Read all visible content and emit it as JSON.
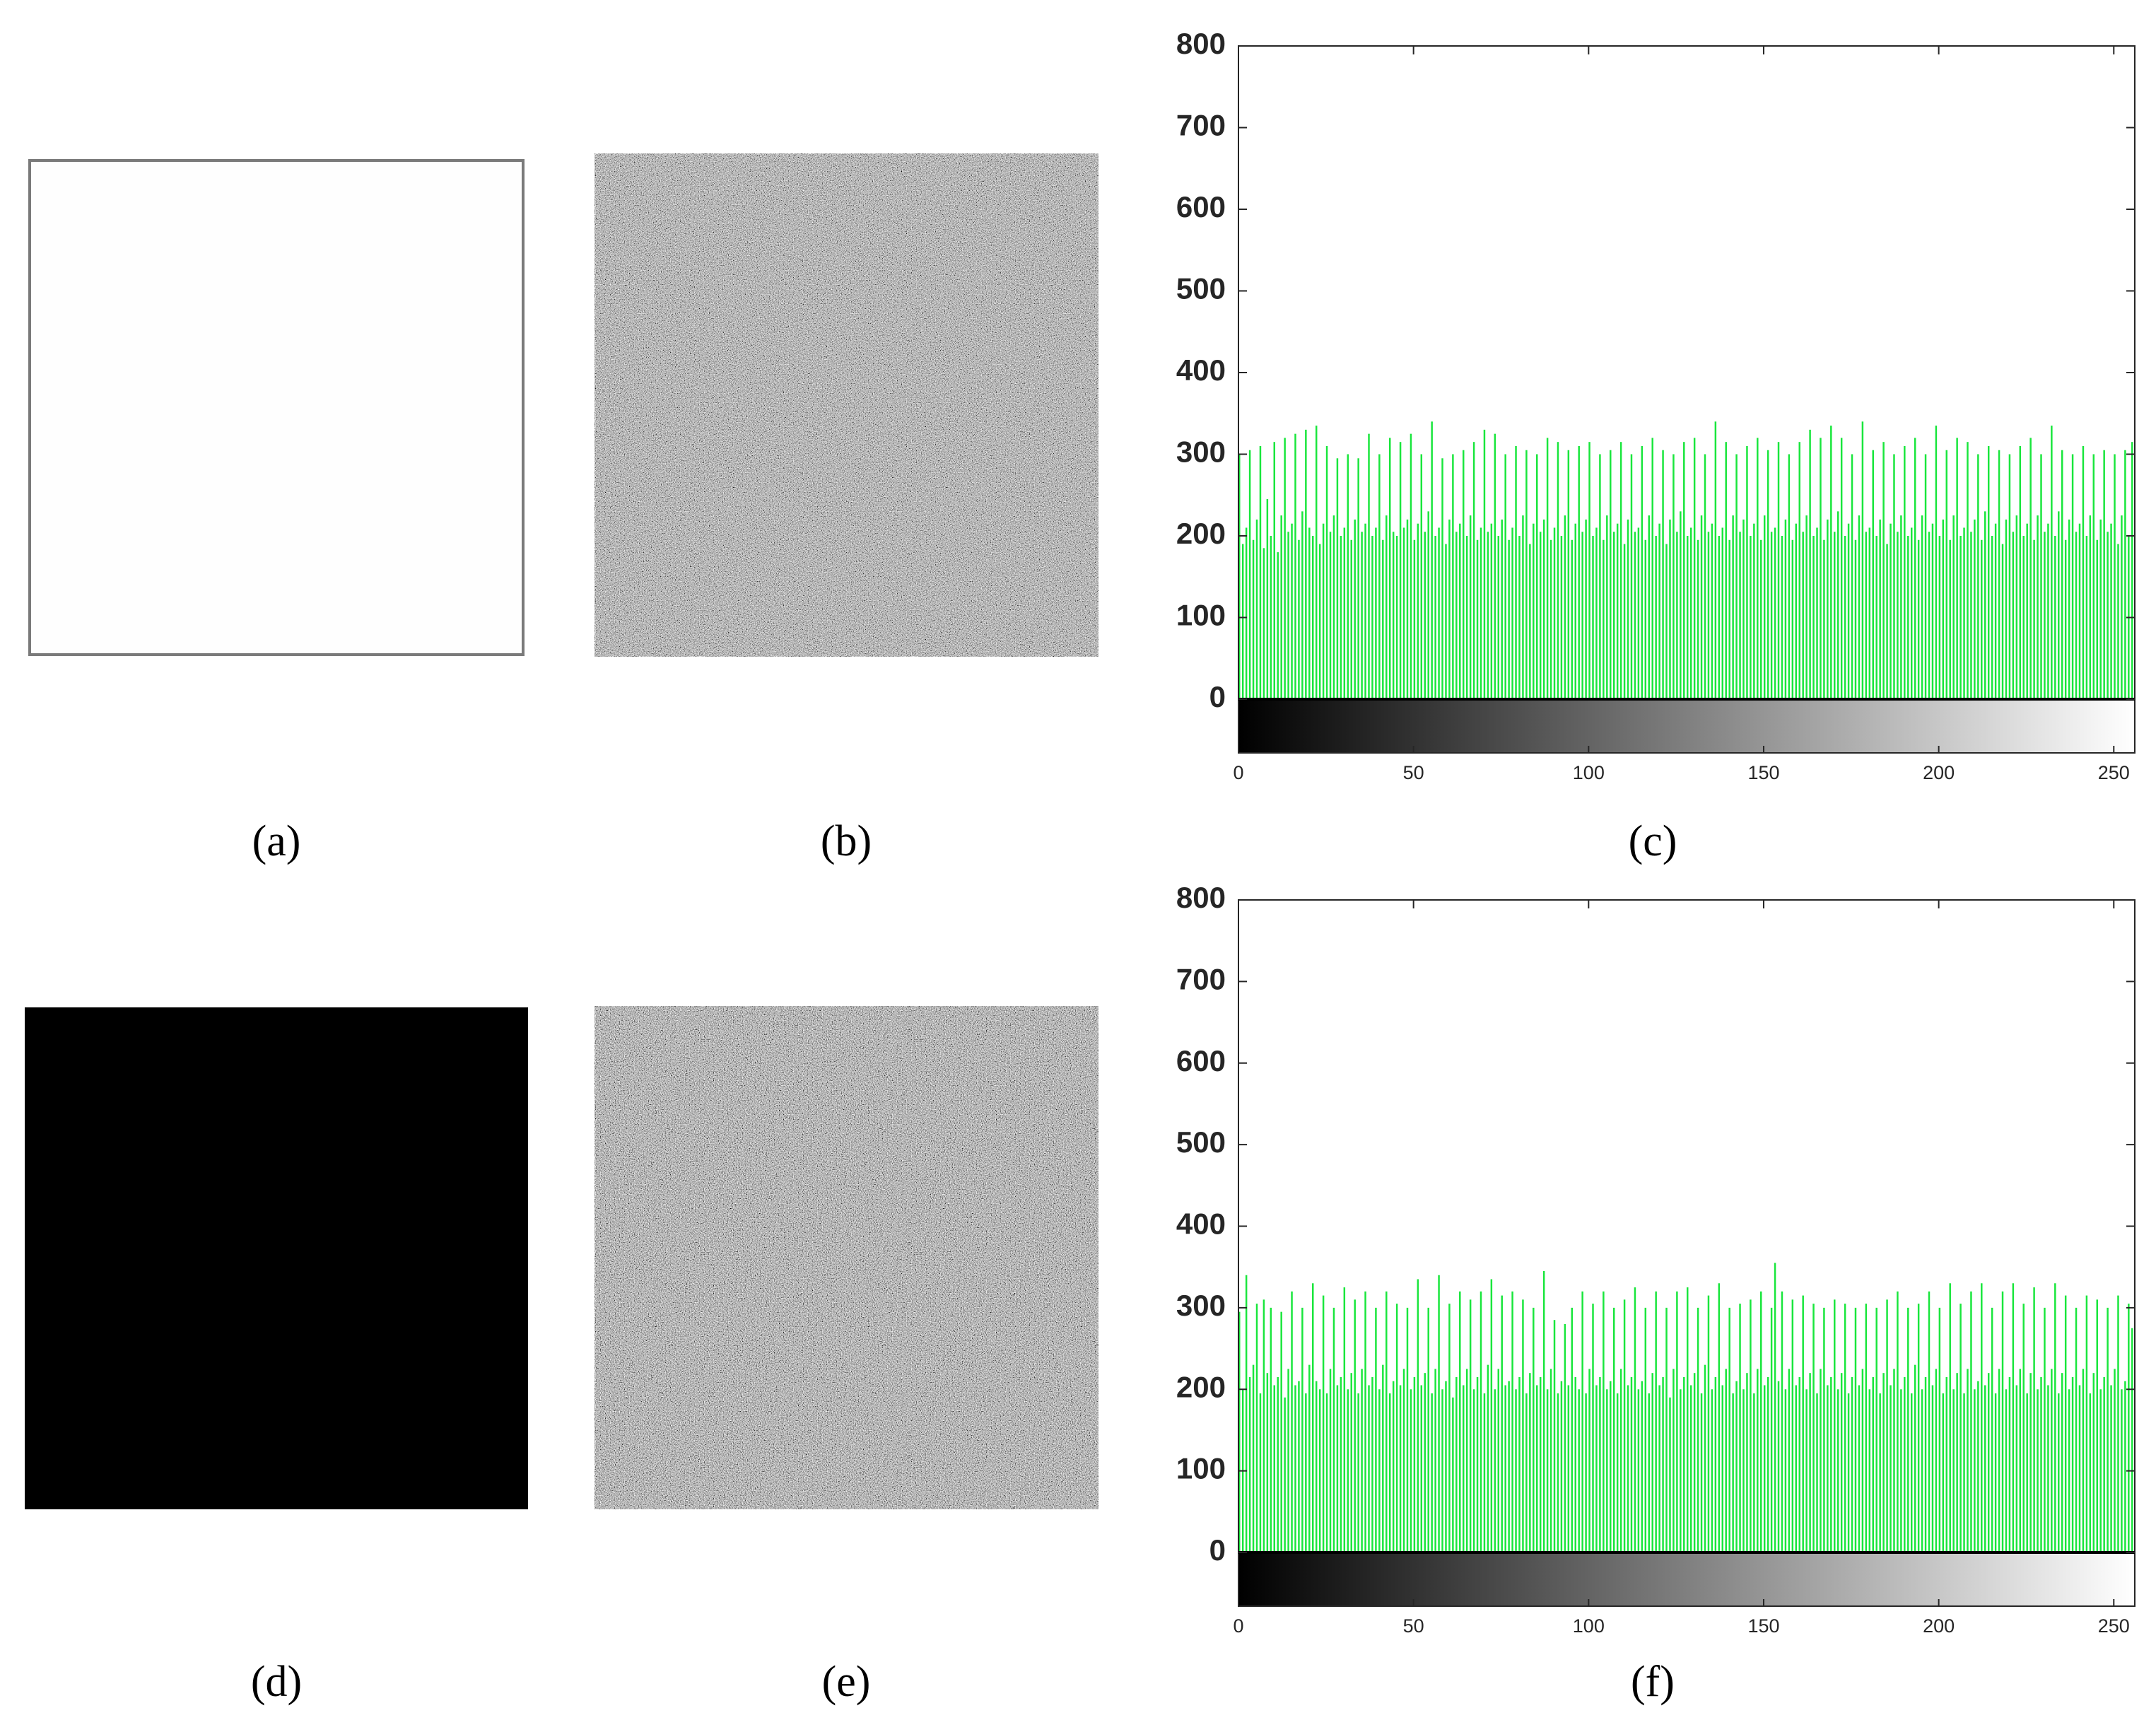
{
  "panels": [
    {
      "label": "(a)"
    },
    {
      "label": "(b)"
    },
    {
      "label": "(d)"
    },
    {
      "label": "(e)"
    }
  ],
  "chart_data": [
    {
      "type": "histogram",
      "caption": "(c)",
      "color": "#19e63c",
      "xlim": [
        0,
        256
      ],
      "ylim": [
        0,
        800
      ],
      "xticks": [
        0,
        50,
        100,
        150,
        200,
        250
      ],
      "yticks": [
        0,
        100,
        200,
        300,
        400,
        500,
        600,
        700,
        800
      ],
      "values": [
        300,
        190,
        210,
        305,
        195,
        220,
        310,
        185,
        245,
        200,
        315,
        180,
        225,
        320,
        205,
        215,
        325,
        195,
        230,
        330,
        210,
        200,
        335,
        190,
        215,
        310,
        205,
        225,
        295,
        200,
        210,
        300,
        195,
        220,
        295,
        205,
        215,
        325,
        200,
        210,
        300,
        195,
        225,
        320,
        205,
        200,
        315,
        210,
        220,
        325,
        195,
        215,
        300,
        205,
        230,
        340,
        200,
        210,
        295,
        190,
        220,
        300,
        205,
        215,
        305,
        200,
        225,
        315,
        195,
        210,
        330,
        205,
        215,
        325,
        200,
        220,
        300,
        195,
        210,
        310,
        200,
        225,
        305,
        190,
        215,
        300,
        205,
        220,
        320,
        195,
        210,
        315,
        200,
        225,
        305,
        195,
        215,
        310,
        205,
        220,
        315,
        200,
        210,
        300,
        195,
        225,
        305,
        205,
        215,
        315,
        190,
        220,
        300,
        205,
        210,
        310,
        195,
        225,
        320,
        200,
        215,
        305,
        190,
        220,
        300,
        205,
        230,
        315,
        200,
        210,
        320,
        195,
        225,
        300,
        205,
        215,
        340,
        200,
        210,
        315,
        195,
        225,
        300,
        205,
        220,
        310,
        200,
        215,
        320,
        195,
        225,
        305,
        205,
        210,
        315,
        200,
        220,
        300,
        195,
        215,
        315,
        205,
        225,
        330,
        200,
        210,
        320,
        195,
        220,
        335,
        205,
        230,
        320,
        200,
        215,
        300,
        195,
        225,
        340,
        205,
        210,
        305,
        200,
        220,
        315,
        190,
        215,
        300,
        205,
        225,
        310,
        200,
        210,
        320,
        195,
        225,
        300,
        205,
        215,
        335,
        200,
        220,
        305,
        195,
        225,
        320,
        200,
        210,
        315,
        205,
        220,
        300,
        195,
        230,
        310,
        200,
        215,
        305,
        190,
        220,
        300,
        205,
        225,
        310,
        200,
        215,
        320,
        195,
        225,
        300,
        205,
        215,
        335,
        200,
        230,
        305,
        195,
        220,
        300,
        205,
        215,
        310,
        200,
        225,
        300,
        195,
        220,
        305,
        205,
        215,
        300,
        190,
        225,
        305,
        200,
        315
      ]
    },
    {
      "type": "histogram",
      "caption": "(f)",
      "color": "#19e63c",
      "xlim": [
        0,
        256
      ],
      "ylim": [
        0,
        800
      ],
      "xticks": [
        0,
        50,
        100,
        150,
        200,
        250
      ],
      "yticks": [
        0,
        100,
        200,
        300,
        400,
        500,
        600,
        700,
        800
      ],
      "values": [
        295,
        200,
        340,
        215,
        230,
        305,
        195,
        310,
        220,
        300,
        205,
        215,
        295,
        190,
        225,
        320,
        205,
        210,
        300,
        195,
        230,
        330,
        210,
        200,
        315,
        195,
        225,
        300,
        205,
        215,
        325,
        200,
        220,
        310,
        195,
        225,
        320,
        205,
        215,
        300,
        200,
        230,
        320,
        195,
        210,
        305,
        205,
        225,
        300,
        200,
        215,
        335,
        205,
        220,
        300,
        195,
        225,
        340,
        200,
        210,
        305,
        190,
        215,
        320,
        205,
        225,
        310,
        200,
        215,
        320,
        195,
        230,
        335,
        200,
        225,
        315,
        205,
        210,
        320,
        200,
        215,
        310,
        195,
        220,
        300,
        205,
        215,
        345,
        200,
        225,
        285,
        195,
        210,
        280,
        205,
        300,
        215,
        200,
        320,
        195,
        225,
        305,
        205,
        215,
        320,
        200,
        210,
        300,
        195,
        225,
        310,
        205,
        215,
        325,
        200,
        210,
        300,
        195,
        220,
        320,
        205,
        215,
        300,
        190,
        225,
        320,
        200,
        215,
        325,
        205,
        220,
        300,
        195,
        230,
        315,
        200,
        215,
        330,
        205,
        225,
        300,
        195,
        210,
        305,
        200,
        220,
        310,
        195,
        225,
        320,
        205,
        215,
        300,
        355,
        210,
        320,
        200,
        225,
        310,
        205,
        215,
        315,
        200,
        220,
        305,
        195,
        225,
        300,
        205,
        215,
        310,
        200,
        220,
        305,
        195,
        215,
        300,
        205,
        225,
        305,
        200,
        215,
        300,
        195,
        220,
        310,
        205,
        225,
        320,
        200,
        215,
        300,
        195,
        230,
        305,
        200,
        215,
        320,
        205,
        225,
        300,
        195,
        215,
        330,
        200,
        220,
        305,
        195,
        225,
        320,
        200,
        210,
        330,
        205,
        220,
        300,
        195,
        225,
        320,
        200,
        215,
        330,
        205,
        225,
        305,
        195,
        220,
        325,
        200,
        215,
        300,
        205,
        225,
        330,
        195,
        220,
        315,
        200,
        215,
        300,
        205,
        225,
        315,
        195,
        220,
        310,
        200,
        215,
        300,
        205,
        225,
        315,
        200,
        210,
        305,
        275
      ]
    }
  ]
}
